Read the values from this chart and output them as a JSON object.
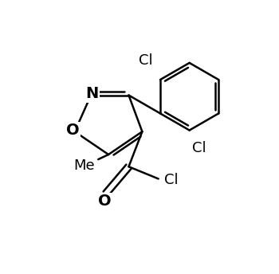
{
  "background": "#ffffff",
  "line_color": "#000000",
  "line_width": 1.8,
  "font_size": 12,
  "figsize": [
    3.5,
    3.44
  ],
  "dpi": 100,
  "xlim": [
    0,
    10
  ],
  "ylim": [
    0,
    10
  ]
}
